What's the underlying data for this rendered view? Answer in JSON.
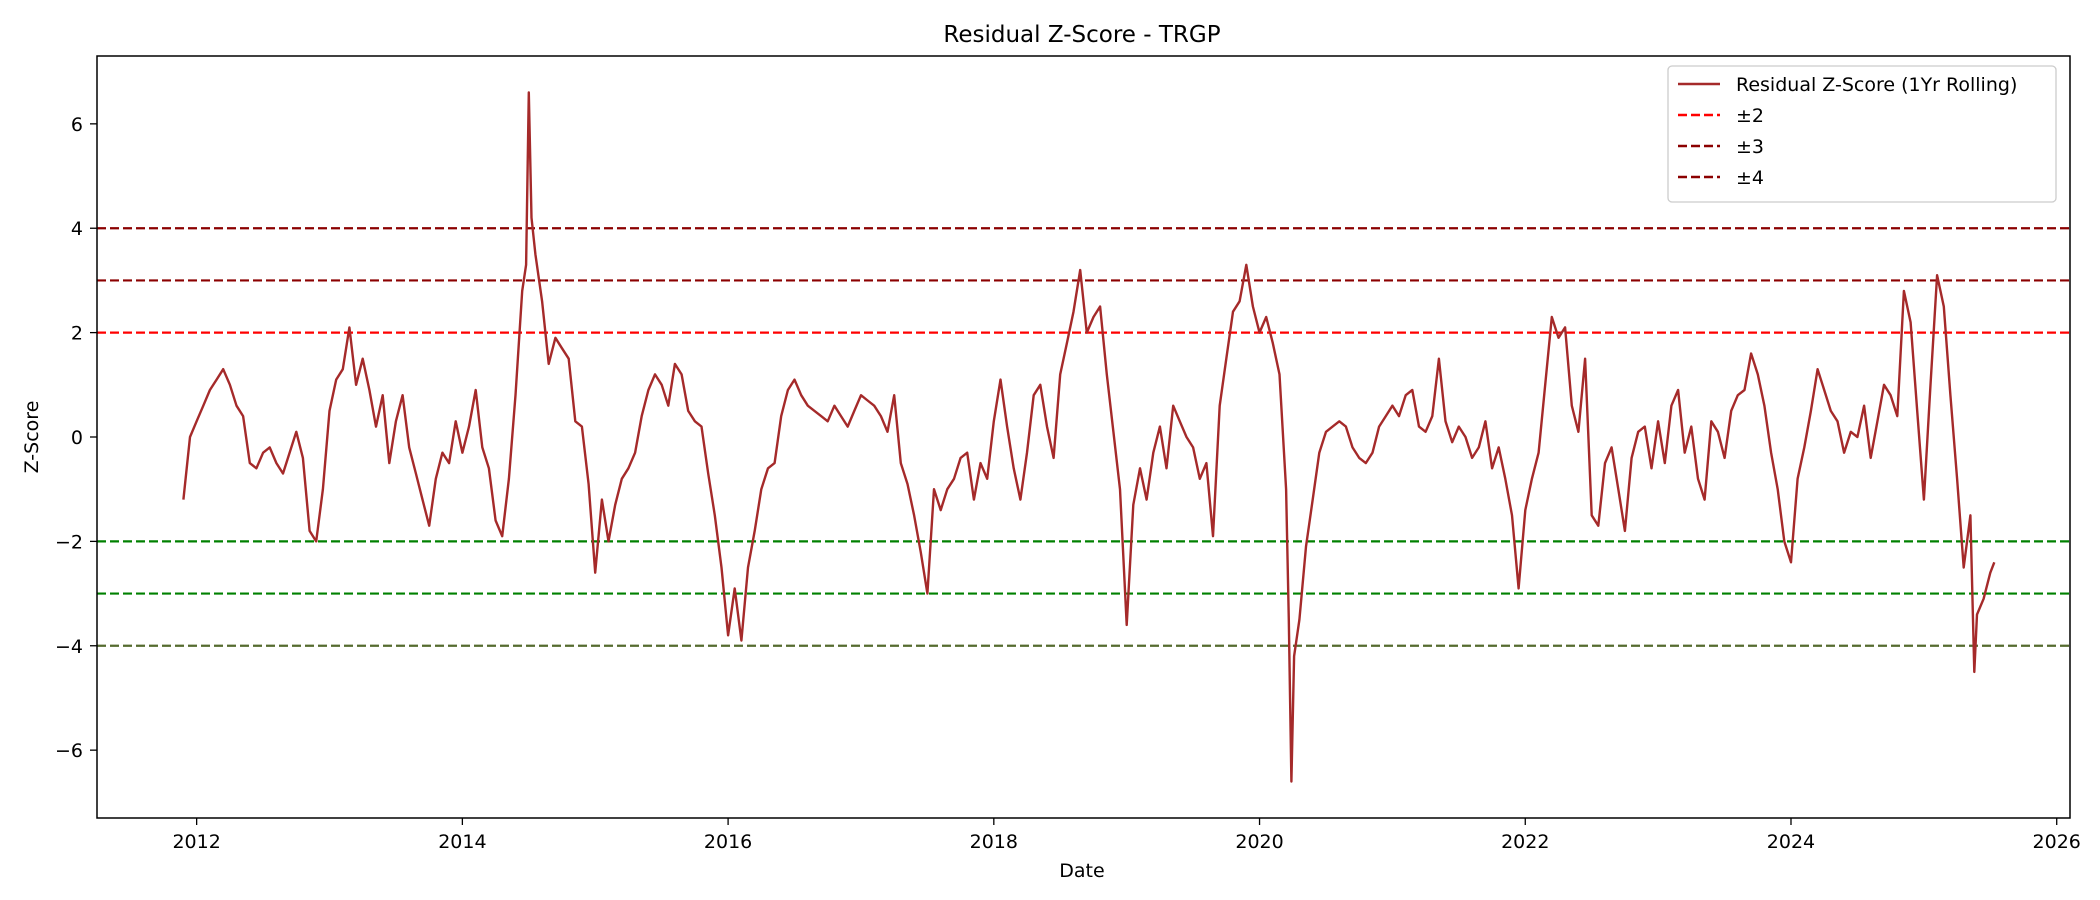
{
  "chart_data": {
    "type": "line",
    "title": "Residual Z-Score - TRGP",
    "xlabel": "Date",
    "ylabel": "Z-Score",
    "xlim": [
      2011.25,
      2026.1
    ],
    "ylim": [
      -7.3,
      7.3
    ],
    "x_ticks": [
      2012,
      2014,
      2016,
      2018,
      2020,
      2022,
      2024,
      2026
    ],
    "x_tick_labels": [
      "2012",
      "2014",
      "2016",
      "2018",
      "2020",
      "2022",
      "2024",
      "2026"
    ],
    "y_ticks": [
      6,
      4,
      2,
      0,
      -2,
      -4,
      -6
    ],
    "y_tick_labels": [
      "6",
      "4",
      "2",
      "0",
      "−2",
      "−4",
      "−6"
    ],
    "grid": false,
    "legend_position": "top-right",
    "series": [
      {
        "name": "Residual Z-Score (1Yr Rolling)",
        "color": "#a52a2a",
        "style": "solid",
        "points": [
          [
            2011.9,
            -1.2
          ],
          [
            2011.95,
            0.0
          ],
          [
            2012.0,
            0.3
          ],
          [
            2012.05,
            0.6
          ],
          [
            2012.1,
            0.9
          ],
          [
            2012.15,
            1.1
          ],
          [
            2012.2,
            1.3
          ],
          [
            2012.25,
            1.0
          ],
          [
            2012.3,
            0.6
          ],
          [
            2012.35,
            0.4
          ],
          [
            2012.4,
            -0.5
          ],
          [
            2012.45,
            -0.6
          ],
          [
            2012.5,
            -0.3
          ],
          [
            2012.55,
            -0.2
          ],
          [
            2012.6,
            -0.5
          ],
          [
            2012.65,
            -0.7
          ],
          [
            2012.7,
            -0.3
          ],
          [
            2012.75,
            0.1
          ],
          [
            2012.8,
            -0.4
          ],
          [
            2012.85,
            -1.8
          ],
          [
            2012.9,
            -2.0
          ],
          [
            2012.95,
            -1.0
          ],
          [
            2013.0,
            0.5
          ],
          [
            2013.05,
            1.1
          ],
          [
            2013.1,
            1.3
          ],
          [
            2013.15,
            2.1
          ],
          [
            2013.2,
            1.0
          ],
          [
            2013.25,
            1.5
          ],
          [
            2013.3,
            0.9
          ],
          [
            2013.35,
            0.2
          ],
          [
            2013.4,
            0.8
          ],
          [
            2013.45,
            -0.5
          ],
          [
            2013.5,
            0.3
          ],
          [
            2013.55,
            0.8
          ],
          [
            2013.6,
            -0.2
          ],
          [
            2013.65,
            -0.7
          ],
          [
            2013.7,
            -1.2
          ],
          [
            2013.75,
            -1.7
          ],
          [
            2013.8,
            -0.8
          ],
          [
            2013.85,
            -0.3
          ],
          [
            2013.9,
            -0.5
          ],
          [
            2013.95,
            0.3
          ],
          [
            2014.0,
            -0.3
          ],
          [
            2014.05,
            0.2
          ],
          [
            2014.1,
            0.9
          ],
          [
            2014.15,
            -0.2
          ],
          [
            2014.2,
            -0.6
          ],
          [
            2014.25,
            -1.6
          ],
          [
            2014.3,
            -1.9
          ],
          [
            2014.35,
            -0.8
          ],
          [
            2014.4,
            0.8
          ],
          [
            2014.45,
            2.8
          ],
          [
            2014.48,
            3.3
          ],
          [
            2014.5,
            6.6
          ],
          [
            2014.52,
            4.2
          ],
          [
            2014.55,
            3.5
          ],
          [
            2014.6,
            2.6
          ],
          [
            2014.65,
            1.4
          ],
          [
            2014.7,
            1.9
          ],
          [
            2014.75,
            1.7
          ],
          [
            2014.8,
            1.5
          ],
          [
            2014.85,
            0.3
          ],
          [
            2014.9,
            0.2
          ],
          [
            2014.95,
            -0.9
          ],
          [
            2015.0,
            -2.6
          ],
          [
            2015.05,
            -1.2
          ],
          [
            2015.1,
            -2.0
          ],
          [
            2015.15,
            -1.3
          ],
          [
            2015.2,
            -0.8
          ],
          [
            2015.25,
            -0.6
          ],
          [
            2015.3,
            -0.3
          ],
          [
            2015.35,
            0.4
          ],
          [
            2015.4,
            0.9
          ],
          [
            2015.45,
            1.2
          ],
          [
            2015.5,
            1.0
          ],
          [
            2015.55,
            0.6
          ],
          [
            2015.6,
            1.4
          ],
          [
            2015.65,
            1.2
          ],
          [
            2015.7,
            0.5
          ],
          [
            2015.75,
            0.3
          ],
          [
            2015.8,
            0.2
          ],
          [
            2015.85,
            -0.7
          ],
          [
            2015.9,
            -1.5
          ],
          [
            2015.95,
            -2.5
          ],
          [
            2016.0,
            -3.8
          ],
          [
            2016.05,
            -2.9
          ],
          [
            2016.1,
            -3.9
          ],
          [
            2016.15,
            -2.5
          ],
          [
            2016.2,
            -1.8
          ],
          [
            2016.25,
            -1.0
          ],
          [
            2016.3,
            -0.6
          ],
          [
            2016.35,
            -0.5
          ],
          [
            2016.4,
            0.4
          ],
          [
            2016.45,
            0.9
          ],
          [
            2016.5,
            1.1
          ],
          [
            2016.55,
            0.8
          ],
          [
            2016.6,
            0.6
          ],
          [
            2016.65,
            0.5
          ],
          [
            2016.7,
            0.4
          ],
          [
            2016.75,
            0.3
          ],
          [
            2016.8,
            0.6
          ],
          [
            2016.85,
            0.4
          ],
          [
            2016.9,
            0.2
          ],
          [
            2016.95,
            0.5
          ],
          [
            2017.0,
            0.8
          ],
          [
            2017.05,
            0.7
          ],
          [
            2017.1,
            0.6
          ],
          [
            2017.15,
            0.4
          ],
          [
            2017.2,
            0.1
          ],
          [
            2017.25,
            0.8
          ],
          [
            2017.3,
            -0.5
          ],
          [
            2017.35,
            -0.9
          ],
          [
            2017.4,
            -1.5
          ],
          [
            2017.45,
            -2.2
          ],
          [
            2017.5,
            -3.0
          ],
          [
            2017.55,
            -1.0
          ],
          [
            2017.6,
            -1.4
          ],
          [
            2017.65,
            -1.0
          ],
          [
            2017.7,
            -0.8
          ],
          [
            2017.75,
            -0.4
          ],
          [
            2017.8,
            -0.3
          ],
          [
            2017.85,
            -1.2
          ],
          [
            2017.9,
            -0.5
          ],
          [
            2017.95,
            -0.8
          ],
          [
            2018.0,
            0.3
          ],
          [
            2018.05,
            1.1
          ],
          [
            2018.1,
            0.2
          ],
          [
            2018.15,
            -0.6
          ],
          [
            2018.2,
            -1.2
          ],
          [
            2018.25,
            -0.3
          ],
          [
            2018.3,
            0.8
          ],
          [
            2018.35,
            1.0
          ],
          [
            2018.4,
            0.2
          ],
          [
            2018.45,
            -0.4
          ],
          [
            2018.5,
            1.2
          ],
          [
            2018.55,
            1.8
          ],
          [
            2018.6,
            2.4
          ],
          [
            2018.65,
            3.2
          ],
          [
            2018.7,
            2.0
          ],
          [
            2018.75,
            2.3
          ],
          [
            2018.8,
            2.5
          ],
          [
            2018.85,
            1.2
          ],
          [
            2018.9,
            0.1
          ],
          [
            2018.95,
            -1.0
          ],
          [
            2019.0,
            -3.6
          ],
          [
            2019.05,
            -1.3
          ],
          [
            2019.1,
            -0.6
          ],
          [
            2019.15,
            -1.2
          ],
          [
            2019.2,
            -0.3
          ],
          [
            2019.25,
            0.2
          ],
          [
            2019.3,
            -0.6
          ],
          [
            2019.35,
            0.6
          ],
          [
            2019.4,
            0.3
          ],
          [
            2019.45,
            0.0
          ],
          [
            2019.5,
            -0.2
          ],
          [
            2019.55,
            -0.8
          ],
          [
            2019.6,
            -0.5
          ],
          [
            2019.65,
            -1.9
          ],
          [
            2019.7,
            0.6
          ],
          [
            2019.75,
            1.5
          ],
          [
            2019.8,
            2.4
          ],
          [
            2019.85,
            2.6
          ],
          [
            2019.9,
            3.3
          ],
          [
            2019.95,
            2.5
          ],
          [
            2020.0,
            2.0
          ],
          [
            2020.05,
            2.3
          ],
          [
            2020.1,
            1.8
          ],
          [
            2020.15,
            1.2
          ],
          [
            2020.2,
            -1.0
          ],
          [
            2020.22,
            -3.5
          ],
          [
            2020.24,
            -6.6
          ],
          [
            2020.26,
            -4.2
          ],
          [
            2020.3,
            -3.5
          ],
          [
            2020.35,
            -2.1
          ],
          [
            2020.4,
            -1.2
          ],
          [
            2020.45,
            -0.3
          ],
          [
            2020.5,
            0.1
          ],
          [
            2020.55,
            0.2
          ],
          [
            2020.6,
            0.3
          ],
          [
            2020.65,
            0.2
          ],
          [
            2020.7,
            -0.2
          ],
          [
            2020.75,
            -0.4
          ],
          [
            2020.8,
            -0.5
          ],
          [
            2020.85,
            -0.3
          ],
          [
            2020.9,
            0.2
          ],
          [
            2020.95,
            0.4
          ],
          [
            2021.0,
            0.6
          ],
          [
            2021.05,
            0.4
          ],
          [
            2021.1,
            0.8
          ],
          [
            2021.15,
            0.9
          ],
          [
            2021.2,
            0.2
          ],
          [
            2021.25,
            0.1
          ],
          [
            2021.3,
            0.4
          ],
          [
            2021.35,
            1.5
          ],
          [
            2021.4,
            0.3
          ],
          [
            2021.45,
            -0.1
          ],
          [
            2021.5,
            0.2
          ],
          [
            2021.55,
            0.0
          ],
          [
            2021.6,
            -0.4
          ],
          [
            2021.65,
            -0.2
          ],
          [
            2021.7,
            0.3
          ],
          [
            2021.75,
            -0.6
          ],
          [
            2021.8,
            -0.2
          ],
          [
            2021.85,
            -0.8
          ],
          [
            2021.9,
            -1.5
          ],
          [
            2021.95,
            -2.9
          ],
          [
            2022.0,
            -1.4
          ],
          [
            2022.05,
            -0.8
          ],
          [
            2022.1,
            -0.3
          ],
          [
            2022.15,
            1.0
          ],
          [
            2022.2,
            2.3
          ],
          [
            2022.25,
            1.9
          ],
          [
            2022.3,
            2.1
          ],
          [
            2022.35,
            0.6
          ],
          [
            2022.4,
            0.1
          ],
          [
            2022.45,
            1.5
          ],
          [
            2022.5,
            -1.5
          ],
          [
            2022.55,
            -1.7
          ],
          [
            2022.6,
            -0.5
          ],
          [
            2022.65,
            -0.2
          ],
          [
            2022.7,
            -1.0
          ],
          [
            2022.75,
            -1.8
          ],
          [
            2022.8,
            -0.4
          ],
          [
            2022.85,
            0.1
          ],
          [
            2022.9,
            0.2
          ],
          [
            2022.95,
            -0.6
          ],
          [
            2023.0,
            0.3
          ],
          [
            2023.05,
            -0.5
          ],
          [
            2023.1,
            0.6
          ],
          [
            2023.15,
            0.9
          ],
          [
            2023.2,
            -0.3
          ],
          [
            2023.25,
            0.2
          ],
          [
            2023.3,
            -0.8
          ],
          [
            2023.35,
            -1.2
          ],
          [
            2023.4,
            0.3
          ],
          [
            2023.45,
            0.1
          ],
          [
            2023.5,
            -0.4
          ],
          [
            2023.55,
            0.5
          ],
          [
            2023.6,
            0.8
          ],
          [
            2023.65,
            0.9
          ],
          [
            2023.7,
            1.6
          ],
          [
            2023.75,
            1.2
          ],
          [
            2023.8,
            0.6
          ],
          [
            2023.85,
            -0.3
          ],
          [
            2023.9,
            -1.0
          ],
          [
            2023.95,
            -2.0
          ],
          [
            2024.0,
            -2.4
          ],
          [
            2024.05,
            -0.8
          ],
          [
            2024.1,
            -0.2
          ],
          [
            2024.15,
            0.5
          ],
          [
            2024.2,
            1.3
          ],
          [
            2024.25,
            0.9
          ],
          [
            2024.3,
            0.5
          ],
          [
            2024.35,
            0.3
          ],
          [
            2024.4,
            -0.3
          ],
          [
            2024.45,
            0.1
          ],
          [
            2024.5,
            0.0
          ],
          [
            2024.55,
            0.6
          ],
          [
            2024.6,
            -0.4
          ],
          [
            2024.65,
            0.3
          ],
          [
            2024.7,
            1.0
          ],
          [
            2024.75,
            0.8
          ],
          [
            2024.8,
            0.4
          ],
          [
            2024.85,
            2.8
          ],
          [
            2024.9,
            2.2
          ],
          [
            2024.95,
            0.5
          ],
          [
            2025.0,
            -1.2
          ],
          [
            2025.05,
            1.0
          ],
          [
            2025.1,
            3.1
          ],
          [
            2025.15,
            2.5
          ],
          [
            2025.2,
            0.8
          ],
          [
            2025.25,
            -0.8
          ],
          [
            2025.3,
            -2.5
          ],
          [
            2025.35,
            -1.5
          ],
          [
            2025.38,
            -4.5
          ],
          [
            2025.4,
            -3.4
          ],
          [
            2025.45,
            -3.1
          ],
          [
            2025.5,
            -2.6
          ],
          [
            2025.53,
            -2.4
          ]
        ]
      },
      {
        "name": "±2",
        "color": "#ff0000",
        "style": "dashed",
        "levels": [
          2
        ]
      },
      {
        "name": "",
        "color": "#008000",
        "style": "dashed",
        "levels": [
          -2,
          -3
        ]
      },
      {
        "name": "±3",
        "color": "#8b0000",
        "style": "dashed",
        "levels": [
          3
        ]
      },
      {
        "name": "±4",
        "color": "#8b0000",
        "style": "dashed",
        "levels": [
          4
        ]
      },
      {
        "name": "",
        "color": "#556b2f",
        "style": "dashed",
        "levels": [
          -4
        ]
      }
    ]
  }
}
